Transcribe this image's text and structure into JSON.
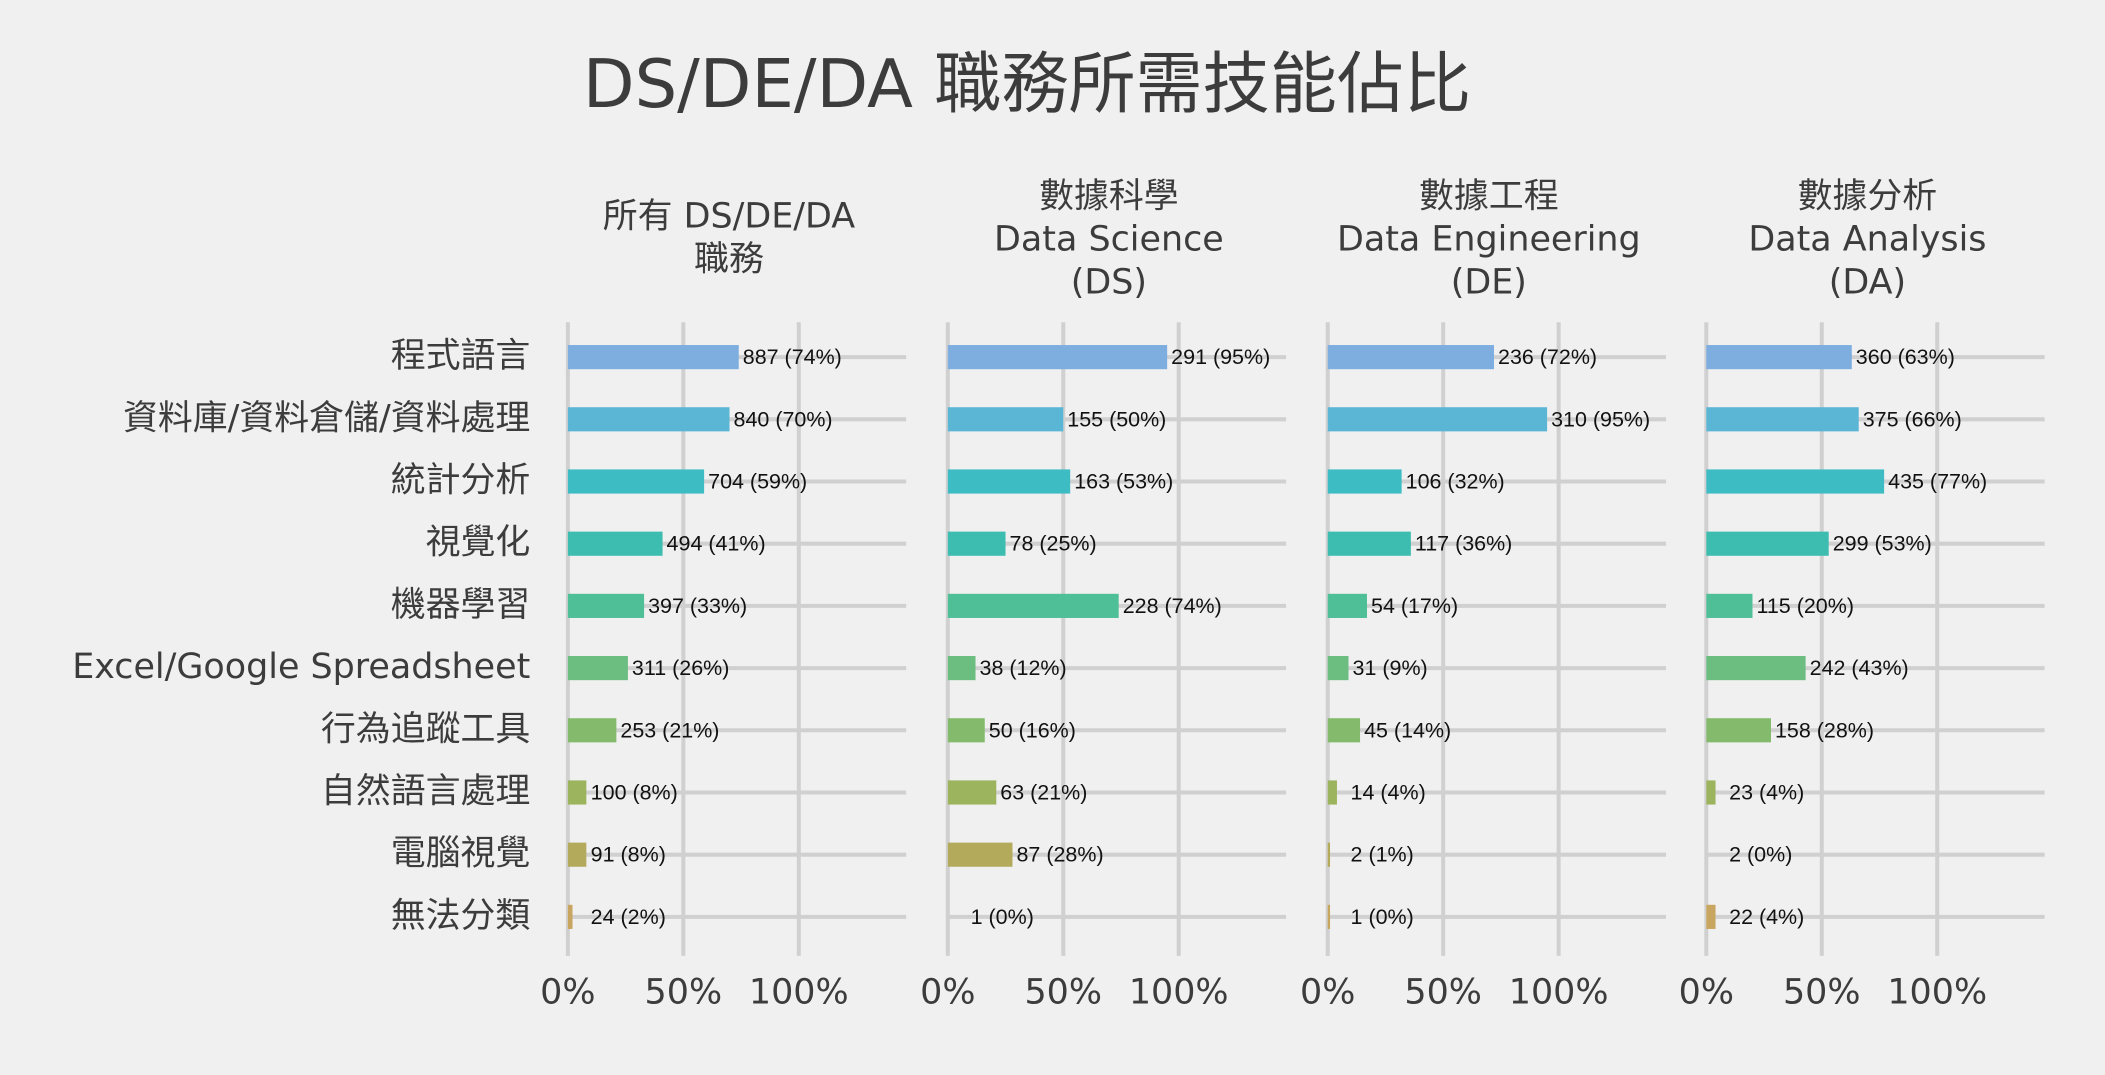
{
  "title": "DS/DE/DA 職務所需技能佔比",
  "chart_data": [
    {
      "type": "barh",
      "title": [
        "所有 DS/DE/DA",
        "職務"
      ],
      "categories": [
        "程式語言",
        "資料庫/資料倉儲/資料處理",
        "統計分析",
        "視覺化",
        "機器學習",
        "Excel/Google Spreadsheet",
        "行為追蹤工具",
        "自然語言處理",
        "電腦視覺",
        "無法分類"
      ],
      "colors": [
        "#7eaee0",
        "#5bb6d6",
        "#3dbcc4",
        "#3cbdb0",
        "#4fbf98",
        "#6bbd80",
        "#84ba6c",
        "#9db45e",
        "#b4aa5c",
        "#c9a660"
      ],
      "values": [
        74,
        70,
        59,
        41,
        33,
        26,
        21,
        8,
        8,
        2
      ],
      "value_labels": [
        "887 (74%)",
        "840 (70%)",
        "704 (59%)",
        "494 (41%)",
        "397 (33%)",
        "311 (26%)",
        "253 (21%)",
        "100 (8%)",
        "91 (8%)",
        "24 (2%)"
      ],
      "xlim": [
        0,
        147
      ],
      "xticks": [
        {
          "value": 0,
          "label": "0%"
        },
        {
          "value": 50,
          "label": "50%"
        },
        {
          "value": 100,
          "label": "100%"
        }
      ],
      "grid": true
    },
    {
      "type": "barh",
      "title": [
        "數據科學",
        "Data Science",
        "(DS)"
      ],
      "values": [
        95,
        50,
        53,
        25,
        74,
        12,
        16,
        21,
        28,
        0
      ],
      "value_labels": [
        "291 (95%)",
        "155 (50%)",
        "163 (53%)",
        "78 (25%)",
        "228 (74%)",
        "38 (12%)",
        "50 (16%)",
        "63 (21%)",
        "87 (28%)",
        "1 (0%)"
      ],
      "xlim": [
        0,
        147
      ],
      "xticks": [
        {
          "value": 0,
          "label": "0%"
        },
        {
          "value": 50,
          "label": "50%"
        },
        {
          "value": 100,
          "label": "100%"
        }
      ],
      "grid": true
    },
    {
      "type": "barh",
      "title": [
        "數據工程",
        "Data Engineering",
        "(DE)"
      ],
      "values": [
        72,
        95,
        32,
        36,
        17,
        9,
        14,
        4,
        1,
        1
      ],
      "value_labels": [
        "236 (72%)",
        "310 (95%)",
        "106 (32%)",
        "117 (36%)",
        "54 (17%)",
        "31 (9%)",
        "45 (14%)",
        "14 (4%)",
        "2 (1%)",
        "1 (0%)"
      ],
      "xlim": [
        0,
        147
      ],
      "xticks": [
        {
          "value": 0,
          "label": "0%"
        },
        {
          "value": 50,
          "label": "50%"
        },
        {
          "value": 100,
          "label": "100%"
        }
      ],
      "grid": true
    },
    {
      "type": "barh",
      "title": [
        "數據分析",
        "Data Analysis",
        "(DA)"
      ],
      "values": [
        63,
        66,
        77,
        53,
        20,
        43,
        28,
        4,
        0,
        4
      ],
      "value_labels": [
        "360 (63%)",
        "375 (66%)",
        "435 (77%)",
        "299 (53%)",
        "115 (20%)",
        "242 (43%)",
        "158 (28%)",
        "23 (4%)",
        "2 (0%)",
        "22 (4%)"
      ],
      "xlim": [
        0,
        147
      ],
      "xticks": [
        {
          "value": 0,
          "label": "0%"
        },
        {
          "value": 50,
          "label": "50%"
        },
        {
          "value": 100,
          "label": "100%"
        }
      ],
      "grid": true
    }
  ]
}
